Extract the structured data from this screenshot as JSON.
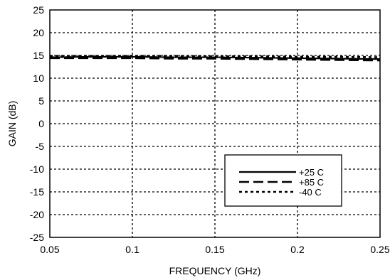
{
  "chart_data": {
    "type": "line",
    "title": "",
    "xlabel": "FREQUENCY (GHz)",
    "ylabel": "GAIN (dB)",
    "xlim": [
      0.05,
      0.25
    ],
    "ylim": [
      -25,
      25
    ],
    "xticks": [
      "0.05",
      "0.1",
      "0.15",
      "0.2",
      "0.25"
    ],
    "yticks": [
      "25",
      "20",
      "15",
      "10",
      "5",
      "0",
      "-5",
      "-10",
      "-15",
      "-20",
      "-25"
    ],
    "grid": true,
    "legend_position": "lower-right",
    "x": [
      0.05,
      0.075,
      0.1,
      0.125,
      0.15,
      0.175,
      0.2,
      0.225,
      0.25
    ],
    "series": [
      {
        "name": "+25 C",
        "style": "solid",
        "values": [
          14.6,
          14.7,
          14.7,
          14.6,
          14.6,
          14.5,
          14.4,
          14.3,
          14.2
        ]
      },
      {
        "name": "+85 C",
        "style": "dashed",
        "values": [
          14.4,
          14.4,
          14.4,
          14.3,
          14.3,
          14.2,
          14.1,
          14.0,
          13.9
        ]
      },
      {
        "name": "-40 C",
        "style": "dotted",
        "values": [
          14.9,
          14.9,
          14.9,
          14.9,
          14.8,
          14.8,
          14.7,
          14.7,
          14.6
        ]
      }
    ]
  }
}
